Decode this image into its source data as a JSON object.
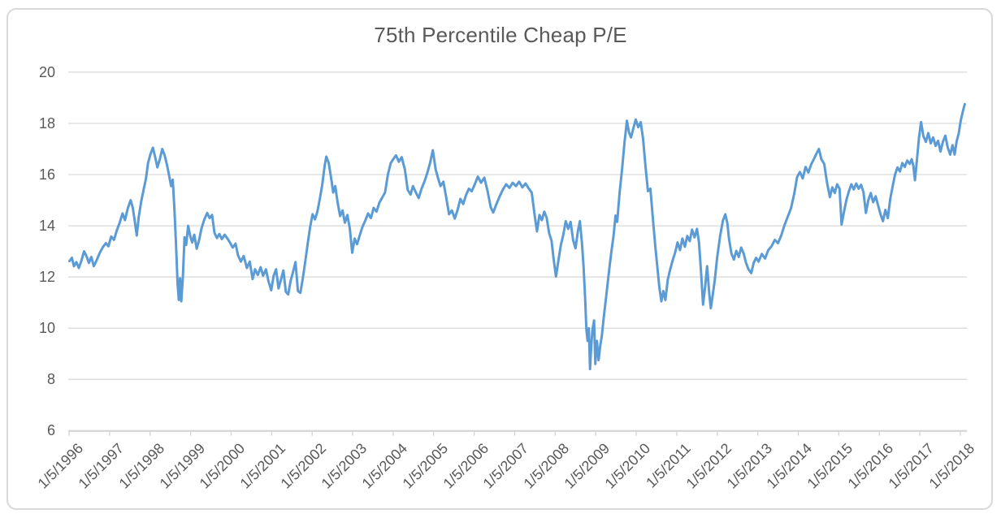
{
  "chart": {
    "title": "75th Percentile Cheap P/E"
  },
  "style": {
    "line_color": "#5B9BD5",
    "grid_color": "#D9D9D9",
    "axis_line_color": "#D3D3D3",
    "text_color": "#595959",
    "border_color": "#D9D9D9",
    "background": "#FFFFFF"
  },
  "chart_data": {
    "type": "line",
    "title": "75th Percentile Cheap P/E",
    "xlabel": "",
    "ylabel": "",
    "legend": "none",
    "grid": "horizontal",
    "ylim": [
      6,
      20
    ],
    "y_ticks": [
      6,
      8,
      10,
      12,
      14,
      16,
      18,
      20
    ],
    "x_tick_labels": [
      "1/5/1996",
      "1/5/1997",
      "1/5/1998",
      "1/5/1999",
      "1/5/2000",
      "1/5/2001",
      "1/5/2002",
      "1/5/2003",
      "1/5/2004",
      "1/5/2005",
      "1/5/2006",
      "1/5/2007",
      "1/5/2008",
      "1/5/2009",
      "1/5/2010",
      "1/5/2011",
      "1/5/2012",
      "1/5/2013",
      "1/5/2014",
      "1/5/2015",
      "1/5/2016",
      "1/5/2017",
      "1/5/2018"
    ],
    "x_unit": "decimal_year",
    "x_range": [
      1996.01,
      2018.12
    ],
    "points": [
      [
        1996.02,
        12.62
      ],
      [
        1996.08,
        12.75
      ],
      [
        1996.13,
        12.42
      ],
      [
        1996.19,
        12.58
      ],
      [
        1996.25,
        12.35
      ],
      [
        1996.31,
        12.62
      ],
      [
        1996.38,
        13.0
      ],
      [
        1996.44,
        12.82
      ],
      [
        1996.5,
        12.55
      ],
      [
        1996.56,
        12.78
      ],
      [
        1996.62,
        12.42
      ],
      [
        1996.69,
        12.65
      ],
      [
        1996.77,
        12.95
      ],
      [
        1996.85,
        13.18
      ],
      [
        1996.92,
        13.32
      ],
      [
        1996.98,
        13.2
      ],
      [
        1997.05,
        13.58
      ],
      [
        1997.12,
        13.45
      ],
      [
        1997.19,
        13.82
      ],
      [
        1997.26,
        14.12
      ],
      [
        1997.33,
        14.48
      ],
      [
        1997.39,
        14.22
      ],
      [
        1997.46,
        14.68
      ],
      [
        1997.53,
        15.0
      ],
      [
        1997.58,
        14.72
      ],
      [
        1997.63,
        14.2
      ],
      [
        1997.68,
        13.62
      ],
      [
        1997.73,
        14.35
      ],
      [
        1997.79,
        14.95
      ],
      [
        1997.85,
        15.4
      ],
      [
        1997.91,
        15.85
      ],
      [
        1997.96,
        16.45
      ],
      [
        1998.02,
        16.8
      ],
      [
        1998.08,
        17.05
      ],
      [
        1998.14,
        16.65
      ],
      [
        1998.19,
        16.28
      ],
      [
        1998.25,
        16.6
      ],
      [
        1998.31,
        17.0
      ],
      [
        1998.37,
        16.75
      ],
      [
        1998.43,
        16.35
      ],
      [
        1998.48,
        15.95
      ],
      [
        1998.53,
        15.55
      ],
      [
        1998.57,
        15.8
      ],
      [
        1998.61,
        14.7
      ],
      [
        1998.65,
        13.3
      ],
      [
        1998.69,
        11.7
      ],
      [
        1998.72,
        11.1
      ],
      [
        1998.75,
        11.95
      ],
      [
        1998.78,
        11.05
      ],
      [
        1998.82,
        12.0
      ],
      [
        1998.86,
        13.55
      ],
      [
        1998.9,
        13.25
      ],
      [
        1998.95,
        14.0
      ],
      [
        1999.0,
        13.6
      ],
      [
        1999.05,
        13.35
      ],
      [
        1999.1,
        13.65
      ],
      [
        1999.16,
        13.1
      ],
      [
        1999.22,
        13.45
      ],
      [
        1999.28,
        13.9
      ],
      [
        1999.35,
        14.25
      ],
      [
        1999.42,
        14.5
      ],
      [
        1999.48,
        14.3
      ],
      [
        1999.54,
        14.42
      ],
      [
        1999.6,
        13.72
      ],
      [
        1999.66,
        13.52
      ],
      [
        1999.72,
        13.68
      ],
      [
        1999.78,
        13.48
      ],
      [
        1999.85,
        13.65
      ],
      [
        1999.92,
        13.5
      ],
      [
        1999.98,
        13.35
      ],
      [
        2000.05,
        13.15
      ],
      [
        2000.12,
        13.3
      ],
      [
        2000.18,
        12.85
      ],
      [
        2000.25,
        12.6
      ],
      [
        2000.32,
        12.82
      ],
      [
        2000.4,
        12.35
      ],
      [
        2000.47,
        12.6
      ],
      [
        2000.54,
        11.92
      ],
      [
        2000.6,
        12.3
      ],
      [
        2000.67,
        12.08
      ],
      [
        2000.74,
        12.38
      ],
      [
        2000.8,
        12.05
      ],
      [
        2000.87,
        12.3
      ],
      [
        2000.93,
        11.85
      ],
      [
        2001.0,
        11.48
      ],
      [
        2001.06,
        12.05
      ],
      [
        2001.12,
        12.3
      ],
      [
        2001.18,
        11.55
      ],
      [
        2001.24,
        11.9
      ],
      [
        2001.3,
        12.25
      ],
      [
        2001.36,
        11.42
      ],
      [
        2001.42,
        11.32
      ],
      [
        2001.48,
        11.85
      ],
      [
        2001.54,
        12.2
      ],
      [
        2001.6,
        12.58
      ],
      [
        2001.66,
        11.45
      ],
      [
        2001.72,
        11.38
      ],
      [
        2001.78,
        11.95
      ],
      [
        2001.84,
        12.6
      ],
      [
        2001.9,
        13.3
      ],
      [
        2001.96,
        13.95
      ],
      [
        2002.02,
        14.45
      ],
      [
        2002.08,
        14.25
      ],
      [
        2002.14,
        14.55
      ],
      [
        2002.2,
        15.05
      ],
      [
        2002.26,
        15.6
      ],
      [
        2002.32,
        16.35
      ],
      [
        2002.36,
        16.7
      ],
      [
        2002.42,
        16.45
      ],
      [
        2002.48,
        15.85
      ],
      [
        2002.53,
        15.3
      ],
      [
        2002.58,
        15.55
      ],
      [
        2002.64,
        14.9
      ],
      [
        2002.7,
        14.38
      ],
      [
        2002.76,
        14.6
      ],
      [
        2002.82,
        14.12
      ],
      [
        2002.88,
        14.42
      ],
      [
        2002.94,
        13.9
      ],
      [
        2003.0,
        12.95
      ],
      [
        2003.06,
        13.5
      ],
      [
        2003.12,
        13.28
      ],
      [
        2003.18,
        13.6
      ],
      [
        2003.25,
        13.95
      ],
      [
        2003.32,
        14.2
      ],
      [
        2003.39,
        14.48
      ],
      [
        2003.46,
        14.3
      ],
      [
        2003.53,
        14.7
      ],
      [
        2003.6,
        14.55
      ],
      [
        2003.67,
        14.9
      ],
      [
        2003.74,
        15.1
      ],
      [
        2003.81,
        15.3
      ],
      [
        2003.88,
        16.0
      ],
      [
        2003.95,
        16.45
      ],
      [
        2004.02,
        16.62
      ],
      [
        2004.08,
        16.75
      ],
      [
        2004.15,
        16.5
      ],
      [
        2004.22,
        16.68
      ],
      [
        2004.3,
        16.2
      ],
      [
        2004.37,
        15.4
      ],
      [
        2004.44,
        15.22
      ],
      [
        2004.5,
        15.55
      ],
      [
        2004.57,
        15.3
      ],
      [
        2004.64,
        15.08
      ],
      [
        2004.71,
        15.45
      ],
      [
        2004.78,
        15.72
      ],
      [
        2004.85,
        16.05
      ],
      [
        2004.92,
        16.45
      ],
      [
        2004.99,
        16.95
      ],
      [
        2005.06,
        16.2
      ],
      [
        2005.12,
        15.85
      ],
      [
        2005.18,
        15.55
      ],
      [
        2005.25,
        15.72
      ],
      [
        2005.32,
        15.1
      ],
      [
        2005.39,
        14.45
      ],
      [
        2005.46,
        14.6
      ],
      [
        2005.53,
        14.28
      ],
      [
        2005.6,
        14.62
      ],
      [
        2005.67,
        15.05
      ],
      [
        2005.74,
        14.85
      ],
      [
        2005.81,
        15.2
      ],
      [
        2005.88,
        15.45
      ],
      [
        2005.95,
        15.35
      ],
      [
        2006.02,
        15.6
      ],
      [
        2006.1,
        15.92
      ],
      [
        2006.18,
        15.68
      ],
      [
        2006.26,
        15.88
      ],
      [
        2006.34,
        15.35
      ],
      [
        2006.42,
        14.72
      ],
      [
        2006.48,
        14.52
      ],
      [
        2006.56,
        14.85
      ],
      [
        2006.64,
        15.15
      ],
      [
        2006.72,
        15.42
      ],
      [
        2006.8,
        15.62
      ],
      [
        2006.88,
        15.48
      ],
      [
        2006.96,
        15.68
      ],
      [
        2007.04,
        15.55
      ],
      [
        2007.12,
        15.72
      ],
      [
        2007.2,
        15.5
      ],
      [
        2007.28,
        15.65
      ],
      [
        2007.36,
        15.45
      ],
      [
        2007.43,
        15.3
      ],
      [
        2007.5,
        14.45
      ],
      [
        2007.56,
        13.78
      ],
      [
        2007.62,
        14.42
      ],
      [
        2007.68,
        14.22
      ],
      [
        2007.74,
        14.55
      ],
      [
        2007.8,
        14.32
      ],
      [
        2007.86,
        13.72
      ],
      [
        2007.92,
        13.42
      ],
      [
        2007.97,
        12.72
      ],
      [
        2008.03,
        12.02
      ],
      [
        2008.09,
        12.65
      ],
      [
        2008.15,
        13.25
      ],
      [
        2008.21,
        13.65
      ],
      [
        2008.27,
        14.18
      ],
      [
        2008.33,
        13.88
      ],
      [
        2008.39,
        14.15
      ],
      [
        2008.45,
        13.45
      ],
      [
        2008.51,
        13.12
      ],
      [
        2008.57,
        13.78
      ],
      [
        2008.62,
        14.18
      ],
      [
        2008.67,
        13.35
      ],
      [
        2008.71,
        12.42
      ],
      [
        2008.75,
        11.15
      ],
      [
        2008.78,
        9.95
      ],
      [
        2008.81,
        9.5
      ],
      [
        2008.84,
        10.0
      ],
      [
        2008.87,
        8.4
      ],
      [
        2008.9,
        9.3
      ],
      [
        2008.93,
        9.95
      ],
      [
        2008.97,
        10.3
      ],
      [
        2009.0,
        8.6
      ],
      [
        2009.04,
        9.5
      ],
      [
        2009.08,
        8.75
      ],
      [
        2009.12,
        9.3
      ],
      [
        2009.16,
        9.7
      ],
      [
        2009.21,
        10.45
      ],
      [
        2009.27,
        11.25
      ],
      [
        2009.33,
        12.1
      ],
      [
        2009.39,
        12.9
      ],
      [
        2009.45,
        13.6
      ],
      [
        2009.5,
        14.4
      ],
      [
        2009.54,
        14.15
      ],
      [
        2009.6,
        15.3
      ],
      [
        2009.66,
        16.2
      ],
      [
        2009.72,
        17.25
      ],
      [
        2009.78,
        18.1
      ],
      [
        2009.83,
        17.65
      ],
      [
        2009.88,
        17.45
      ],
      [
        2009.94,
        17.8
      ],
      [
        2010.0,
        18.15
      ],
      [
        2010.06,
        17.85
      ],
      [
        2010.12,
        18.05
      ],
      [
        2010.18,
        17.4
      ],
      [
        2010.24,
        16.3
      ],
      [
        2010.3,
        15.35
      ],
      [
        2010.36,
        15.45
      ],
      [
        2010.42,
        14.3
      ],
      [
        2010.48,
        13.2
      ],
      [
        2010.53,
        12.4
      ],
      [
        2010.58,
        11.6
      ],
      [
        2010.63,
        11.05
      ],
      [
        2010.68,
        11.45
      ],
      [
        2010.73,
        11.1
      ],
      [
        2010.79,
        11.9
      ],
      [
        2010.85,
        12.3
      ],
      [
        2010.91,
        12.65
      ],
      [
        2010.97,
        12.95
      ],
      [
        2011.03,
        13.35
      ],
      [
        2011.09,
        13.05
      ],
      [
        2011.15,
        13.5
      ],
      [
        2011.21,
        13.18
      ],
      [
        2011.27,
        13.6
      ],
      [
        2011.33,
        13.4
      ],
      [
        2011.39,
        13.85
      ],
      [
        2011.45,
        13.55
      ],
      [
        2011.51,
        13.88
      ],
      [
        2011.56,
        13.35
      ],
      [
        2011.61,
        12.2
      ],
      [
        2011.66,
        10.92
      ],
      [
        2011.71,
        11.6
      ],
      [
        2011.76,
        12.42
      ],
      [
        2011.81,
        11.4
      ],
      [
        2011.85,
        10.78
      ],
      [
        2011.9,
        11.32
      ],
      [
        2011.95,
        11.9
      ],
      [
        2012.01,
        12.8
      ],
      [
        2012.08,
        13.6
      ],
      [
        2012.15,
        14.2
      ],
      [
        2012.21,
        14.45
      ],
      [
        2012.26,
        14.1
      ],
      [
        2012.3,
        13.5
      ],
      [
        2012.36,
        12.92
      ],
      [
        2012.42,
        12.68
      ],
      [
        2012.48,
        13.02
      ],
      [
        2012.54,
        12.78
      ],
      [
        2012.6,
        13.15
      ],
      [
        2012.66,
        12.92
      ],
      [
        2012.72,
        12.55
      ],
      [
        2012.78,
        12.3
      ],
      [
        2012.85,
        12.15
      ],
      [
        2012.91,
        12.55
      ],
      [
        2012.97,
        12.75
      ],
      [
        2013.03,
        12.6
      ],
      [
        2013.11,
        12.9
      ],
      [
        2013.19,
        12.72
      ],
      [
        2013.27,
        13.05
      ],
      [
        2013.35,
        13.2
      ],
      [
        2013.43,
        13.45
      ],
      [
        2013.51,
        13.32
      ],
      [
        2013.59,
        13.62
      ],
      [
        2013.67,
        14.02
      ],
      [
        2013.75,
        14.35
      ],
      [
        2013.83,
        14.68
      ],
      [
        2013.91,
        15.25
      ],
      [
        2013.98,
        15.9
      ],
      [
        2014.05,
        16.1
      ],
      [
        2014.12,
        15.85
      ],
      [
        2014.19,
        16.3
      ],
      [
        2014.26,
        16.08
      ],
      [
        2014.33,
        16.4
      ],
      [
        2014.4,
        16.62
      ],
      [
        2014.47,
        16.85
      ],
      [
        2014.52,
        17.0
      ],
      [
        2014.58,
        16.6
      ],
      [
        2014.65,
        16.42
      ],
      [
        2014.72,
        15.68
      ],
      [
        2014.79,
        15.12
      ],
      [
        2014.85,
        15.5
      ],
      [
        2014.91,
        15.28
      ],
      [
        2014.97,
        15.62
      ],
      [
        2015.03,
        15.45
      ],
      [
        2015.08,
        14.05
      ],
      [
        2015.14,
        14.55
      ],
      [
        2015.2,
        15.02
      ],
      [
        2015.26,
        15.35
      ],
      [
        2015.32,
        15.62
      ],
      [
        2015.38,
        15.42
      ],
      [
        2015.44,
        15.65
      ],
      [
        2015.5,
        15.45
      ],
      [
        2015.56,
        15.6
      ],
      [
        2015.62,
        15.3
      ],
      [
        2015.68,
        14.5
      ],
      [
        2015.74,
        15.0
      ],
      [
        2015.8,
        15.28
      ],
      [
        2015.86,
        14.92
      ],
      [
        2015.92,
        15.15
      ],
      [
        2015.98,
        14.8
      ],
      [
        2016.04,
        14.45
      ],
      [
        2016.1,
        14.18
      ],
      [
        2016.16,
        14.62
      ],
      [
        2016.22,
        14.3
      ],
      [
        2016.28,
        15.05
      ],
      [
        2016.34,
        15.55
      ],
      [
        2016.4,
        16.0
      ],
      [
        2016.46,
        16.28
      ],
      [
        2016.52,
        16.12
      ],
      [
        2016.58,
        16.45
      ],
      [
        2016.64,
        16.3
      ],
      [
        2016.7,
        16.55
      ],
      [
        2016.76,
        16.42
      ],
      [
        2016.81,
        16.6
      ],
      [
        2016.85,
        16.35
      ],
      [
        2016.89,
        15.78
      ],
      [
        2016.94,
        16.6
      ],
      [
        2016.99,
        17.45
      ],
      [
        2017.04,
        18.05
      ],
      [
        2017.1,
        17.5
      ],
      [
        2017.16,
        17.28
      ],
      [
        2017.22,
        17.62
      ],
      [
        2017.28,
        17.22
      ],
      [
        2017.34,
        17.45
      ],
      [
        2017.4,
        17.12
      ],
      [
        2017.46,
        17.32
      ],
      [
        2017.52,
        16.9
      ],
      [
        2017.58,
        17.28
      ],
      [
        2017.64,
        17.52
      ],
      [
        2017.7,
        17.05
      ],
      [
        2017.76,
        16.78
      ],
      [
        2017.82,
        17.15
      ],
      [
        2017.87,
        16.78
      ],
      [
        2017.92,
        17.3
      ],
      [
        2017.97,
        17.6
      ],
      [
        2018.02,
        18.1
      ],
      [
        2018.07,
        18.45
      ],
      [
        2018.12,
        18.75
      ]
    ]
  }
}
